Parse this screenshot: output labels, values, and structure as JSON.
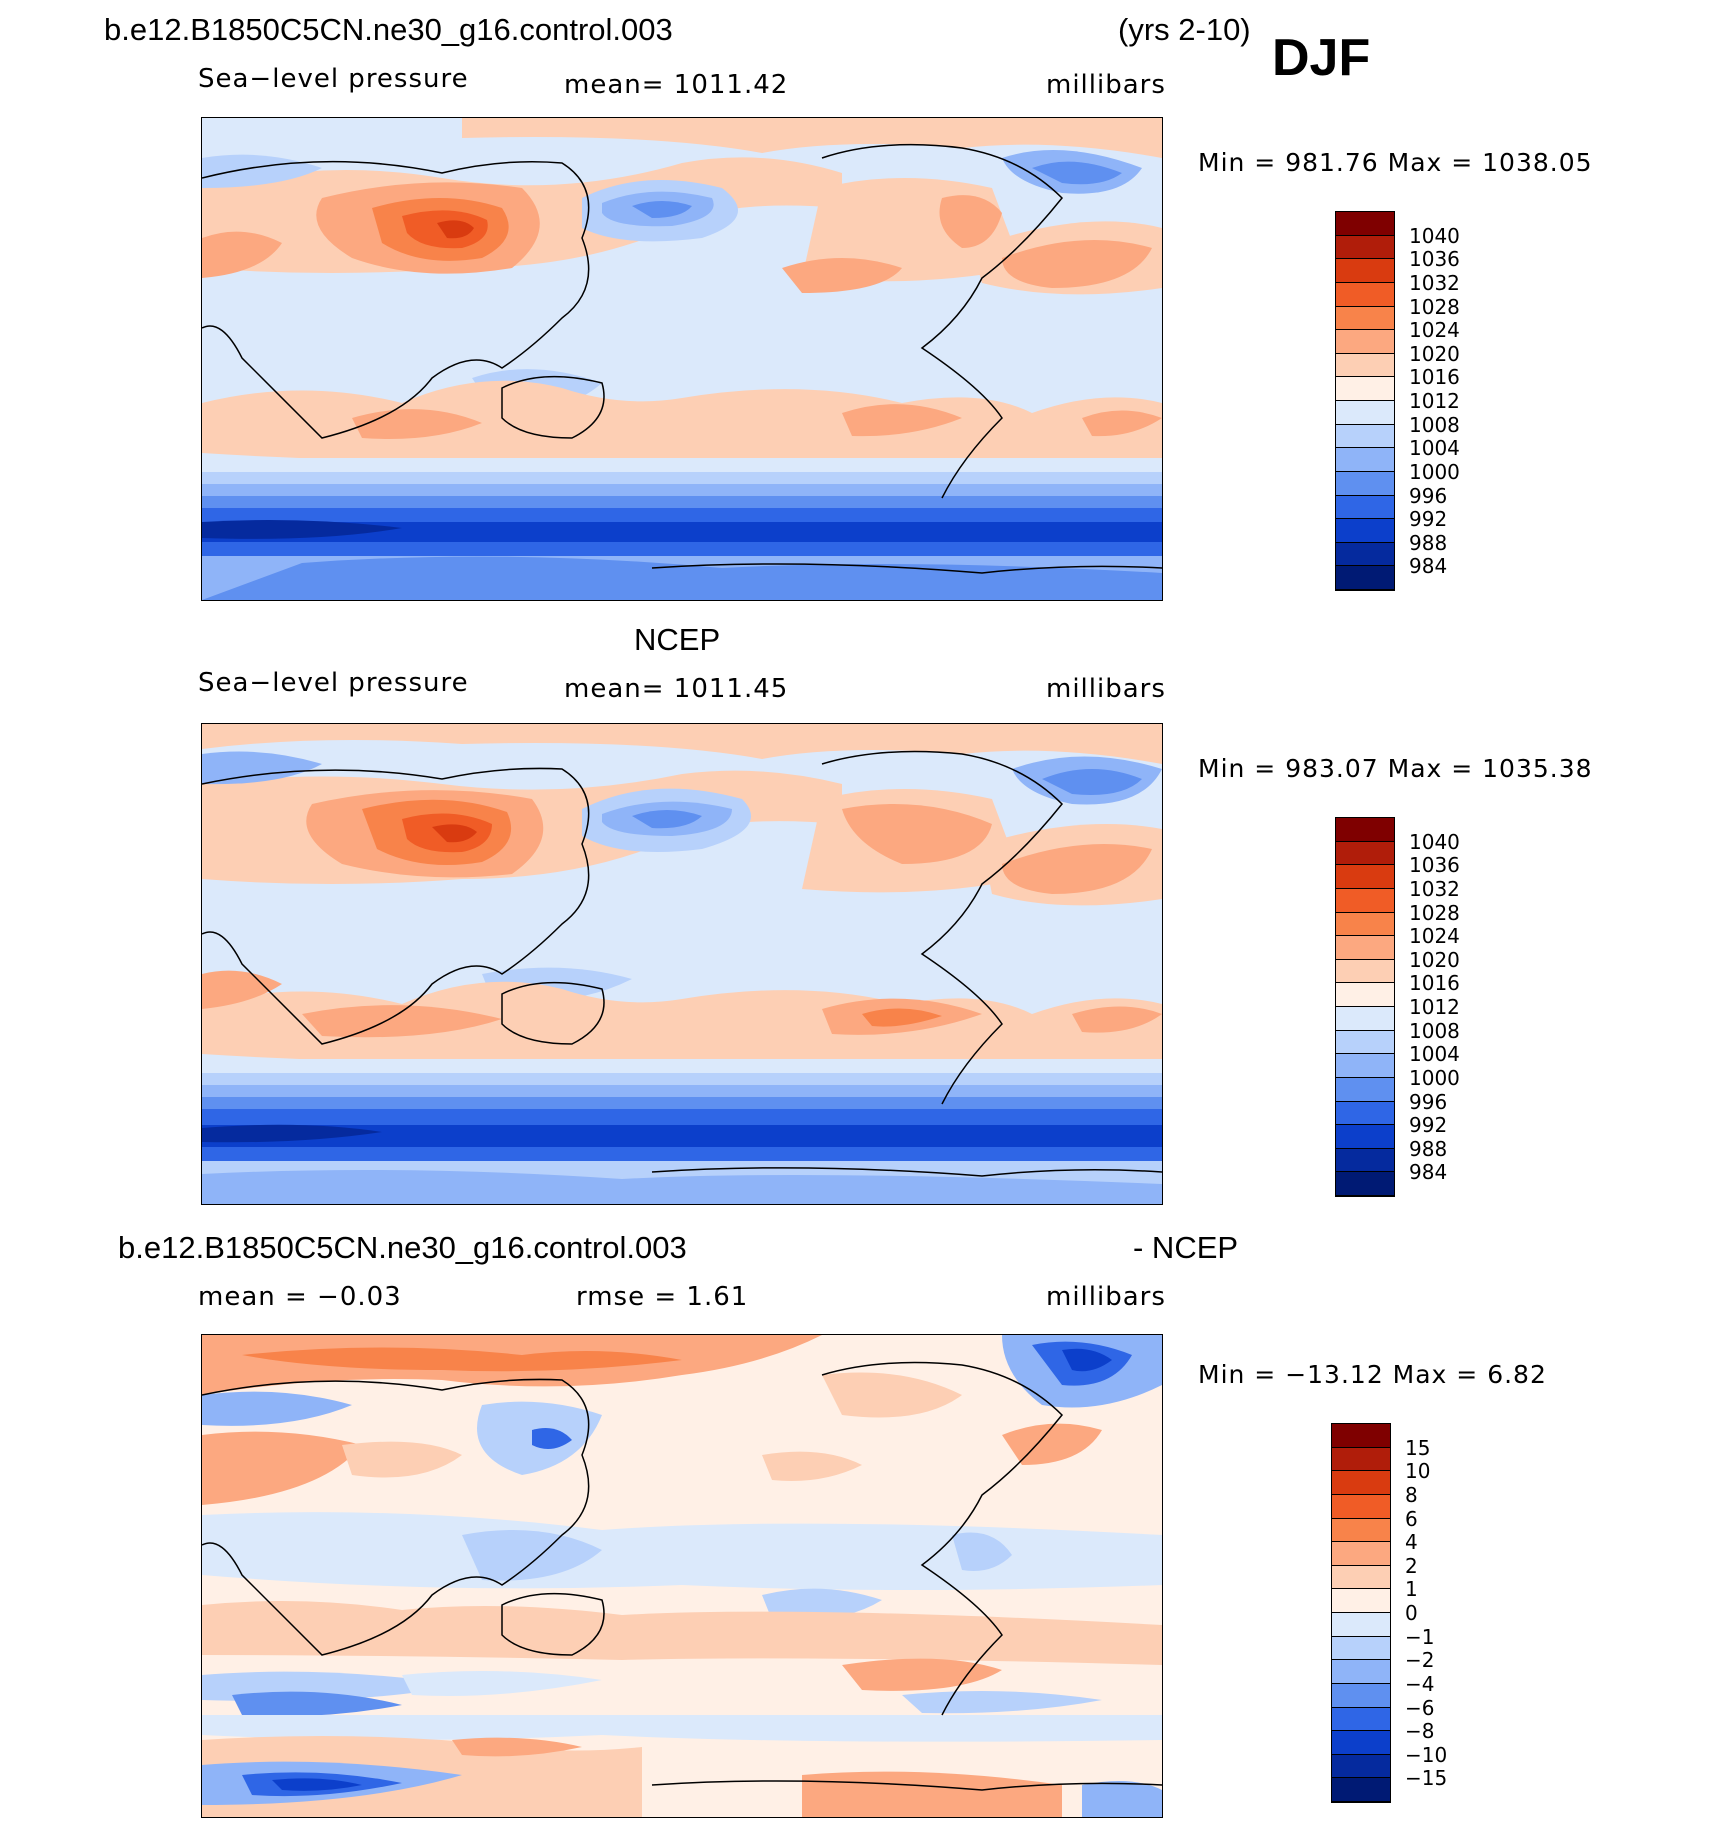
{
  "header": {
    "case_name": "b.e12.B1850C5CN.ne30_g16.control.003",
    "years": "(yrs 2-10)",
    "season": "DJF"
  },
  "panels": [
    {
      "id": "model",
      "title": "",
      "variable": "Sea−level pressure",
      "mean_label": "mean=  1011.42",
      "units": "millibars",
      "minmax": "Min  =  981.76  Max  =  1038.05"
    },
    {
      "id": "obs",
      "title": "NCEP",
      "variable": "Sea−level pressure",
      "mean_label": "mean=  1011.45",
      "units": "millibars",
      "minmax": "Min  =  983.07  Max  =  1035.38"
    },
    {
      "id": "diff",
      "title_left": "b.e12.B1850C5CN.ne30_g16.control.003",
      "title_right": "- NCEP",
      "mean_label": "mean  =    −0.03",
      "rmse_label": "rmse  =      1.61",
      "units": "millibars",
      "minmax": "Min  =  −13.12  Max  =       6.82"
    }
  ],
  "colorbars": {
    "slp": {
      "labels": [
        "1040",
        "1036",
        "1032",
        "1028",
        "1024",
        "1020",
        "1016",
        "1012",
        "1008",
        "1004",
        "1000",
        "996",
        "992",
        "988",
        "984"
      ],
      "colors": [
        "#7f0000",
        "#b01d0a",
        "#d93b10",
        "#f05c26",
        "#f8834a",
        "#fca880",
        "#fdcfb4",
        "#fff0e6",
        "#dbe9fb",
        "#b7d1fb",
        "#8fb4f8",
        "#5f90f0",
        "#2f66e6",
        "#0c3fcb",
        "#052a9e",
        "#001a74"
      ]
    },
    "diff": {
      "labels": [
        "15",
        "10",
        "8",
        "6",
        "4",
        "2",
        "1",
        "0",
        "−1",
        "−2",
        "−4",
        "−6",
        "−8",
        "−10",
        "−15"
      ],
      "colors": [
        "#7f0000",
        "#b01d0a",
        "#d93b10",
        "#f05c26",
        "#f8834a",
        "#fca880",
        "#fdcfb4",
        "#fff0e6",
        "#dbe9fb",
        "#b7d1fb",
        "#8fb4f8",
        "#5f90f0",
        "#2f66e6",
        "#0c3fcb",
        "#052a9e",
        "#001a74"
      ]
    }
  }
}
